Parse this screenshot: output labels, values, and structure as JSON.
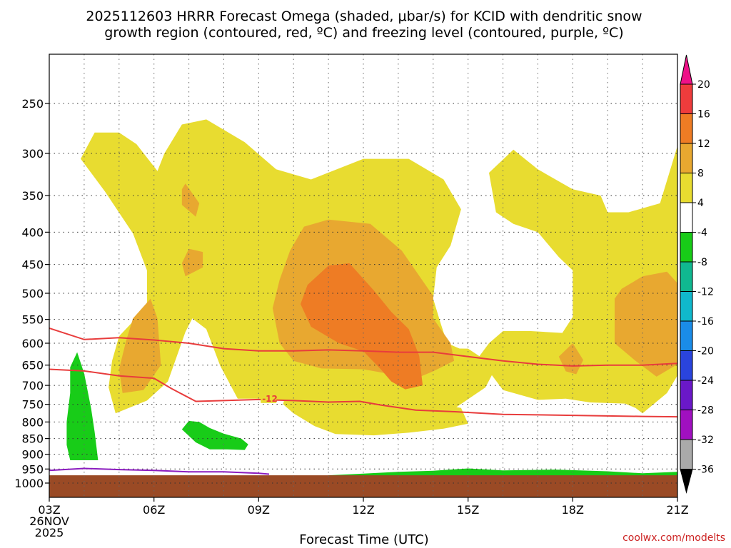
{
  "chart_data": {
    "type": "heatmap",
    "title_line1": "2025112603 HRRR Forecast Omega (shaded, μbar/s) for KCID with dendritic snow",
    "title_line2": "growth region (contoured, red, ºC) and freezing level (contoured, purple, ºC)",
    "xlabel": "Forecast Time (UTC)",
    "credit": "coolwx.com/modelts",
    "x_ticks": [
      {
        "hour": 3,
        "label": "03Z"
      },
      {
        "hour": 6,
        "label": "06Z"
      },
      {
        "hour": 9,
        "label": "09Z"
      },
      {
        "hour": 12,
        "label": "12Z"
      },
      {
        "hour": 15,
        "label": "15Z"
      },
      {
        "hour": 18,
        "label": "18Z"
      },
      {
        "hour": 21,
        "label": "21Z"
      }
    ],
    "start_date_label": [
      "26NOV",
      "2025"
    ],
    "xlim": [
      3,
      21
    ],
    "y_ticks": [
      250,
      300,
      350,
      400,
      450,
      500,
      550,
      600,
      650,
      700,
      750,
      800,
      850,
      900,
      950,
      1000
    ],
    "ylim": [
      200,
      1035
    ],
    "yscale": "log-pressure",
    "colorbar": {
      "labels": [
        "20",
        "16",
        "12",
        "8",
        "4",
        "-4",
        "-8",
        "-12",
        "-16",
        "-20",
        "-24",
        "-28",
        "-32",
        "-36"
      ],
      "colors": [
        "#ee1188",
        "#ee3c3c",
        "#ee7c24",
        "#e8a830",
        "#e8dc30",
        "#ffffff",
        "#18cc18",
        "#10b890",
        "#10b8cc",
        "#1a8ce8",
        "#2a44dd",
        "#6a18c8",
        "#a010c0",
        "#aaaaaa",
        "#000000"
      ]
    },
    "series": [
      {
        "name": "-12",
        "color": "#e83c3c",
        "label_at": {
          "hour": 9.1,
          "p": 735
        },
        "points": [
          [
            3,
            660
          ],
          [
            4,
            664
          ],
          [
            5,
            676
          ],
          [
            6,
            682
          ],
          [
            6.5,
            708
          ],
          [
            7.2,
            742
          ],
          [
            8,
            740
          ],
          [
            9,
            737
          ],
          [
            10,
            740
          ],
          [
            11,
            744
          ],
          [
            11.9,
            742
          ],
          [
            12.5,
            752
          ],
          [
            13.5,
            766
          ],
          [
            14.5,
            770
          ],
          [
            16,
            778
          ],
          [
            18,
            781
          ],
          [
            20,
            784
          ],
          [
            21,
            785
          ]
        ]
      },
      {
        "color": "#e83c3c",
        "points": [
          [
            3,
            568
          ],
          [
            4,
            592
          ],
          [
            5,
            588
          ],
          [
            6,
            593
          ],
          [
            7,
            600
          ],
          [
            8,
            612
          ],
          [
            9,
            617
          ],
          [
            10,
            617
          ],
          [
            11,
            615
          ],
          [
            12,
            617
          ],
          [
            13,
            620
          ],
          [
            14,
            620
          ],
          [
            15,
            630
          ],
          [
            16,
            640
          ],
          [
            17,
            648
          ],
          [
            18,
            652
          ],
          [
            19,
            650
          ],
          [
            20,
            650
          ],
          [
            21,
            646
          ]
        ]
      },
      {
        "color": "#8b1cbf",
        "points": [
          [
            3,
            955
          ],
          [
            4,
            948
          ],
          [
            5,
            952
          ],
          [
            6,
            955
          ],
          [
            7,
            960
          ],
          [
            8,
            960
          ],
          [
            9,
            965
          ],
          [
            9.3,
            968
          ]
        ]
      }
    ],
    "shaded_regions": [
      {
        "level": "4 to 8",
        "color": "#e8dc30",
        "points": [
          [
            4.3,
            278
          ],
          [
            3.9,
            306
          ],
          [
            4.6,
            345
          ],
          [
            5.4,
            402
          ],
          [
            5.8,
            460
          ],
          [
            5.8,
            525
          ],
          [
            5.0,
            585
          ],
          [
            4.8,
            640
          ],
          [
            4.7,
            705
          ],
          [
            4.9,
            775
          ],
          [
            5.8,
            740
          ],
          [
            6.4,
            690
          ],
          [
            6.9,
            576
          ],
          [
            7.1,
            548
          ],
          [
            7.5,
            570
          ],
          [
            7.9,
            652
          ],
          [
            8.4,
            735
          ],
          [
            9.0,
            735
          ],
          [
            10.0,
            740
          ],
          [
            11.0,
            745
          ],
          [
            12.0,
            740
          ],
          [
            12.8,
            738
          ],
          [
            13.5,
            748
          ],
          [
            14.2,
            738
          ],
          [
            15.0,
            705
          ],
          [
            15.6,
            655
          ],
          [
            15.0,
            620
          ],
          [
            14.4,
            600
          ],
          [
            14.2,
            555
          ],
          [
            14.0,
            510
          ],
          [
            14.1,
            455
          ],
          [
            14.5,
            420
          ],
          [
            14.8,
            368
          ],
          [
            14.3,
            330
          ],
          [
            13.3,
            306
          ],
          [
            12.0,
            306
          ],
          [
            10.5,
            330
          ],
          [
            9.5,
            318
          ],
          [
            8.6,
            288
          ],
          [
            7.5,
            265
          ],
          [
            6.8,
            270
          ],
          [
            6.3,
            300
          ],
          [
            6.1,
            320
          ],
          [
            5.5,
            290
          ],
          [
            5.0,
            278
          ]
        ]
      },
      {
        "level": "4 to 8",
        "color": "#e8dc30",
        "points": [
          [
            9.2,
            650
          ],
          [
            9.6,
            720
          ],
          [
            10.5,
            742
          ],
          [
            12.0,
            745
          ],
          [
            13.0,
            750
          ],
          [
            13.6,
            768
          ],
          [
            14.6,
            762
          ],
          [
            15.5,
            705
          ],
          [
            15.8,
            655
          ],
          [
            15.0,
            612
          ],
          [
            12.0,
            610
          ],
          [
            10.0,
            612
          ]
        ]
      },
      {
        "level": "4 to 8",
        "color": "#e8dc30",
        "points": [
          [
            9.8,
            712
          ],
          [
            9.7,
            750
          ],
          [
            10.0,
            775
          ],
          [
            10.6,
            812
          ],
          [
            11.2,
            836
          ],
          [
            12.3,
            840
          ],
          [
            13.3,
            832
          ],
          [
            14.3,
            820
          ],
          [
            15.0,
            805
          ],
          [
            14.8,
            760
          ],
          [
            13.5,
            738
          ],
          [
            12.0,
            730
          ],
          [
            10.5,
            728
          ]
        ]
      },
      {
        "level": "4 to 8",
        "color": "#e8dc30",
        "points": [
          [
            15.6,
            322
          ],
          [
            16.3,
            296
          ],
          [
            17.0,
            318
          ],
          [
            18.0,
            342
          ],
          [
            18.8,
            350
          ],
          [
            19.0,
            372
          ],
          [
            19.6,
            372
          ],
          [
            20.5,
            360
          ],
          [
            21.0,
            292
          ],
          [
            21.0,
            675
          ],
          [
            20.7,
            720
          ],
          [
            20.0,
            775
          ],
          [
            19.8,
            760
          ],
          [
            19.5,
            748
          ],
          [
            18.5,
            745
          ],
          [
            17.8,
            735
          ],
          [
            17.0,
            738
          ],
          [
            16.0,
            712
          ],
          [
            15.3,
            632
          ],
          [
            15.6,
            600
          ],
          [
            16.0,
            574
          ],
          [
            16.8,
            574
          ],
          [
            17.7,
            578
          ],
          [
            18.0,
            545
          ],
          [
            18.0,
            460
          ],
          [
            17.6,
            438
          ],
          [
            17.0,
            400
          ],
          [
            16.3,
            388
          ],
          [
            15.8,
            372
          ]
        ]
      },
      {
        "level": "8 to 12",
        "color": "#e8a830",
        "points": [
          [
            5.2,
            595
          ],
          [
            5.0,
            660
          ],
          [
            5.1,
            720
          ],
          [
            5.7,
            712
          ],
          [
            6.2,
            650
          ],
          [
            6.1,
            548
          ],
          [
            5.9,
            510
          ],
          [
            5.4,
            548
          ]
        ]
      },
      {
        "level": "8 to 12",
        "color": "#e8a830",
        "points": [
          [
            6.8,
            342
          ],
          [
            6.8,
            362
          ],
          [
            7.2,
            378
          ],
          [
            7.3,
            360
          ],
          [
            6.9,
            335
          ]
        ]
      },
      {
        "level": "8 to 12",
        "color": "#e8a830",
        "points": [
          [
            7.0,
            425
          ],
          [
            6.8,
            448
          ],
          [
            6.9,
            470
          ],
          [
            7.4,
            455
          ],
          [
            7.4,
            430
          ]
        ]
      },
      {
        "level": "8 to 12",
        "color": "#e8a830",
        "points": [
          [
            9.6,
            476
          ],
          [
            9.4,
            528
          ],
          [
            9.6,
            600
          ],
          [
            10.0,
            640
          ],
          [
            10.8,
            658
          ],
          [
            12.0,
            660
          ],
          [
            12.8,
            672
          ],
          [
            13.3,
            690
          ],
          [
            14.0,
            665
          ],
          [
            14.6,
            640
          ],
          [
            14.5,
            600
          ],
          [
            14.0,
            548
          ],
          [
            14.0,
            505
          ],
          [
            13.1,
            428
          ],
          [
            12.2,
            388
          ],
          [
            11.0,
            382
          ],
          [
            10.3,
            392
          ],
          [
            9.9,
            428
          ]
        ]
      },
      {
        "level": "8 to 12",
        "color": "#e8a830",
        "points": [
          [
            17.6,
            630
          ],
          [
            17.8,
            665
          ],
          [
            18.1,
            672
          ],
          [
            18.3,
            638
          ],
          [
            18.0,
            600
          ]
        ]
      },
      {
        "level": "8 to 12",
        "color": "#e8a830",
        "points": [
          [
            19.2,
            510
          ],
          [
            19.2,
            600
          ],
          [
            19.8,
            640
          ],
          [
            20.4,
            678
          ],
          [
            21.0,
            648
          ],
          [
            21.0,
            482
          ],
          [
            20.7,
            462
          ],
          [
            20.0,
            470
          ],
          [
            19.4,
            492
          ]
        ]
      },
      {
        "level": "12 to 16",
        "color": "#ee7c24",
        "points": [
          [
            10.4,
            485
          ],
          [
            10.2,
            520
          ],
          [
            10.5,
            565
          ],
          [
            11.3,
            600
          ],
          [
            12.0,
            618
          ],
          [
            12.5,
            660
          ],
          [
            12.8,
            690
          ],
          [
            13.2,
            710
          ],
          [
            13.7,
            700
          ],
          [
            13.6,
            628
          ],
          [
            13.3,
            570
          ],
          [
            12.8,
            535
          ],
          [
            12.3,
            495
          ],
          [
            11.6,
            448
          ],
          [
            11.0,
            452
          ]
        ]
      },
      {
        "level": "-4 to -8",
        "color": "#18cc18",
        "points": [
          [
            3.6,
            655
          ],
          [
            3.6,
            720
          ],
          [
            3.5,
            800
          ],
          [
            3.5,
            870
          ],
          [
            3.6,
            920
          ],
          [
            4.4,
            920
          ],
          [
            4.3,
            830
          ],
          [
            4.2,
            762
          ],
          [
            4.0,
            670
          ],
          [
            3.8,
            620
          ]
        ]
      },
      {
        "level": "-4 to -8",
        "color": "#18cc18",
        "points": [
          [
            7.0,
            797
          ],
          [
            6.8,
            822
          ],
          [
            7.2,
            862
          ],
          [
            7.6,
            884
          ],
          [
            8.1,
            884
          ],
          [
            8.6,
            886
          ],
          [
            8.7,
            868
          ],
          [
            8.5,
            850
          ],
          [
            8.0,
            835
          ],
          [
            7.6,
            818
          ],
          [
            7.3,
            800
          ]
        ]
      },
      {
        "level": "-4 to -8",
        "color": "#18cc18",
        "points": [
          [
            11.0,
            972
          ],
          [
            12.0,
            966
          ],
          [
            13.0,
            960
          ],
          [
            14.0,
            956
          ],
          [
            15.0,
            948
          ],
          [
            16.0,
            955
          ],
          [
            17.5,
            952
          ],
          [
            19.0,
            958
          ],
          [
            20.0,
            965
          ],
          [
            21.0,
            960
          ],
          [
            21.0,
            985
          ],
          [
            11.0,
            985
          ]
        ]
      }
    ],
    "ground": {
      "p_top": 972,
      "color": "#9a4a25"
    }
  }
}
